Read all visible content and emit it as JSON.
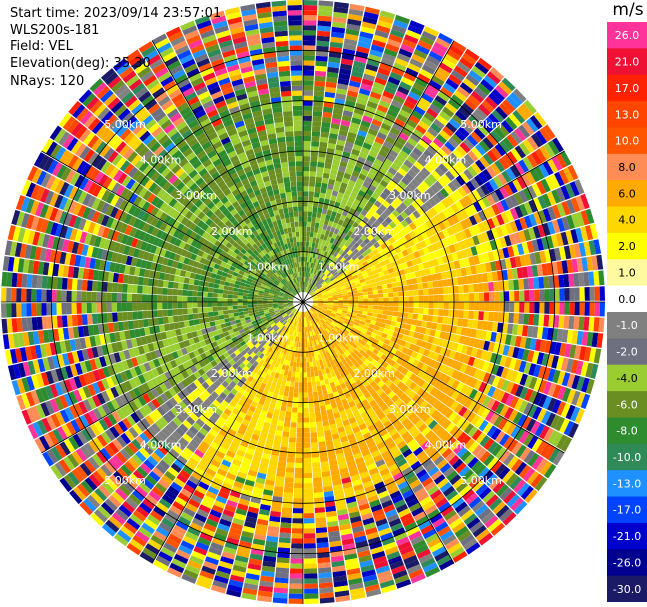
{
  "info": {
    "start_time": "Start time: 2023/09/14 23:57:01",
    "site": "WLS200s-181",
    "field": "Field: VEL",
    "elevation": "Elevation(deg): 35.30",
    "nrays": "NRays: 120"
  },
  "chart_data": {
    "type": "ppi",
    "nrays": 120,
    "max_range_km": 6.0,
    "range_rings_km": [
      1.0,
      2.0,
      3.0,
      4.0,
      5.0
    ],
    "ring_labels": [
      "1.00km",
      "2.00km",
      "3.00km",
      "4.00km",
      "5.00km"
    ],
    "spokes_deg": [
      0,
      30,
      60,
      90,
      120,
      150,
      180,
      210,
      240,
      270,
      300,
      330
    ],
    "colorbar": {
      "unit": "m/s",
      "ticks": [
        "26.0",
        "21.0",
        "17.0",
        "13.0",
        "10.0",
        "8.0",
        "6.0",
        "4.0",
        "2.0",
        "1.0",
        "0.0",
        "-1.0",
        "-2.0",
        "-4.0",
        "-6.0",
        "-8.0",
        "-10.0",
        "-13.0",
        "-17.0",
        "-21.0",
        "-26.0",
        "-30.0"
      ],
      "colors": [
        "#ff3399",
        "#ee1133",
        "#ff2200",
        "#ff4500",
        "#ff5500",
        "#ff8c55",
        "#ffaa00",
        "#ffd700",
        "#ffff00",
        "#fffaa0",
        "#ffffff",
        "#808080",
        "#6e7080",
        "#9acd32",
        "#6b8e23",
        "#2e8b2e",
        "#2e8b57",
        "#1e90ff",
        "#0044ff",
        "#0000cc",
        "#000090",
        "#1a1a66"
      ]
    }
  }
}
